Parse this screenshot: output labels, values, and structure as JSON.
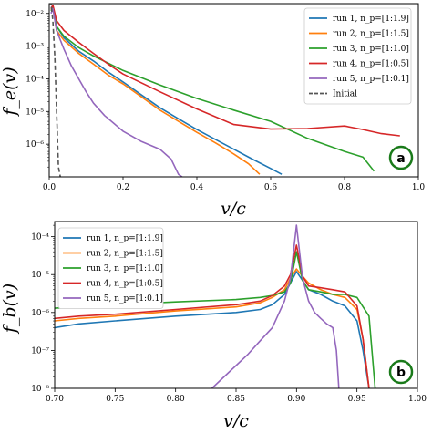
{
  "chart_data": [
    {
      "type": "line",
      "panel_badge": "a",
      "xlabel": "v/c",
      "ylabel": "f_e(v)",
      "xlim": [
        0,
        1
      ],
      "ylim_log10": [
        -7,
        -1.7
      ],
      "y_scale": "log",
      "grid": false,
      "legend_position": "top-right",
      "x_ticks": [
        "0.0",
        "0.2",
        "0.4",
        "0.6",
        "0.8",
        "1.0"
      ],
      "x_tick_values": [
        0,
        0.2,
        0.4,
        0.6,
        0.8,
        1.0
      ],
      "y_ticks": [
        "10⁻⁶",
        "10⁻⁵",
        "10⁻⁴",
        "10⁻³",
        "10⁻²"
      ],
      "y_tick_exponents": [
        -6,
        -5,
        -4,
        -3,
        -2
      ],
      "series": [
        {
          "name": "run 1, n_p=[1:1.9]",
          "color": "#1f77b4",
          "x": [
            0.005,
            0.01,
            0.02,
            0.04,
            0.08,
            0.12,
            0.16,
            0.2,
            0.25,
            0.3,
            0.35,
            0.4,
            0.45,
            0.5,
            0.55,
            0.6,
            0.63
          ],
          "y": [
            0.015,
            0.017,
            0.004,
            0.0018,
            0.0007,
            0.00035,
            0.00016,
            8e-05,
            3.2e-05,
            1.3e-05,
            6e-06,
            2.8e-06,
            1.4e-06,
            7e-07,
            3.5e-07,
            1.8e-07,
            1.2e-07
          ]
        },
        {
          "name": "run 2, n_p=[1:1.5]",
          "color": "#ff7f0e",
          "x": [
            0.005,
            0.01,
            0.02,
            0.04,
            0.08,
            0.12,
            0.16,
            0.2,
            0.25,
            0.3,
            0.35,
            0.4,
            0.45,
            0.5,
            0.54,
            0.57
          ],
          "y": [
            0.013,
            0.016,
            0.003,
            0.0015,
            0.0006,
            0.00028,
            0.00013,
            7e-05,
            2.8e-05,
            1.1e-05,
            5e-06,
            2.3e-06,
            1.1e-06,
            5e-07,
            2.5e-07,
            1.2e-07
          ]
        },
        {
          "name": "run 3, n_p=[1:1.0]",
          "color": "#2ca02c",
          "x": [
            0.005,
            0.01,
            0.02,
            0.04,
            0.08,
            0.12,
            0.16,
            0.2,
            0.3,
            0.4,
            0.5,
            0.6,
            0.7,
            0.8,
            0.85,
            0.88
          ],
          "y": [
            0.012,
            0.015,
            0.004,
            0.002,
            0.0009,
            0.0005,
            0.0003,
            0.00018,
            6.5e-05,
            2.5e-05,
            1.1e-05,
            5e-06,
            1.5e-06,
            6e-07,
            4e-07,
            1.5e-07
          ]
        },
        {
          "name": "run 4, n_p=[1:0.5]",
          "color": "#d62728",
          "x": [
            0.005,
            0.01,
            0.02,
            0.04,
            0.08,
            0.12,
            0.16,
            0.2,
            0.3,
            0.4,
            0.5,
            0.6,
            0.7,
            0.8,
            0.85,
            0.9,
            0.95
          ],
          "y": [
            0.014,
            0.018,
            0.006,
            0.003,
            0.0013,
            0.0006,
            0.00028,
            0.00014,
            4e-05,
            1.2e-05,
            4e-06,
            2.9e-06,
            3e-06,
            3.6e-06,
            2.8e-06,
            2.1e-06,
            1.8e-06
          ]
        },
        {
          "name": "run 5, n_p=[1:0.1]",
          "color": "#9467bd",
          "x": [
            0.005,
            0.01,
            0.02,
            0.04,
            0.06,
            0.08,
            0.1,
            0.12,
            0.15,
            0.2,
            0.25,
            0.3,
            0.33,
            0.35,
            0.36
          ],
          "y": [
            0.01,
            0.014,
            0.003,
            0.0008,
            0.00025,
            0.0001,
            4e-05,
            1.8e-05,
            7.5e-06,
            2.5e-06,
            1.2e-06,
            7e-07,
            3.5e-07,
            1.2e-07,
            1e-07
          ]
        },
        {
          "name": "Initial",
          "color": "#555555",
          "dashed": true,
          "x": [
            0.0,
            0.005,
            0.01,
            0.015,
            0.02,
            0.025,
            0.03
          ],
          "y": [
            0.025,
            0.02,
            0.006,
            0.0005,
            1e-05,
            2e-07,
            1e-07
          ]
        }
      ]
    },
    {
      "type": "line",
      "panel_badge": "b",
      "xlabel": "v/c",
      "ylabel": "f_b(v)",
      "xlim": [
        0.7,
        1.0
      ],
      "ylim_log10": [
        -8,
        -3.6
      ],
      "y_scale": "log",
      "grid": false,
      "legend_position": "top-left",
      "x_ticks": [
        "0.70",
        "0.75",
        "0.80",
        "0.85",
        "0.90",
        "0.95",
        "1.00"
      ],
      "x_tick_values": [
        0.7,
        0.75,
        0.8,
        0.85,
        0.9,
        0.95,
        1.0
      ],
      "y_ticks": [
        "10⁻⁸",
        "10⁻⁷",
        "10⁻⁶",
        "10⁻⁵",
        "10⁻⁴"
      ],
      "y_tick_exponents": [
        -8,
        -7,
        -6,
        -5,
        -4
      ],
      "series": [
        {
          "name": "run 1, n_p=[1:1.9]",
          "color": "#1f77b4",
          "x": [
            0.7,
            0.72,
            0.75,
            0.8,
            0.85,
            0.87,
            0.88,
            0.89,
            0.895,
            0.9,
            0.905,
            0.91,
            0.92,
            0.93,
            0.94,
            0.95,
            0.955,
            0.96
          ],
          "y": [
            4e-07,
            5e-07,
            6e-07,
            8e-07,
            1e-06,
            1.2e-06,
            1.6e-06,
            3e-06,
            6e-06,
            1.2e-05,
            7e-06,
            4e-06,
            3e-06,
            2e-06,
            1.5e-06,
            6e-07,
            1e-07,
            1e-08
          ]
        },
        {
          "name": "run 2, n_p=[1:1.5]",
          "color": "#ff7f0e",
          "x": [
            0.7,
            0.72,
            0.75,
            0.8,
            0.85,
            0.87,
            0.88,
            0.89,
            0.895,
            0.9,
            0.905,
            0.91,
            0.92,
            0.93,
            0.94,
            0.95,
            0.955,
            0.96
          ],
          "y": [
            6e-07,
            7e-07,
            8e-07,
            1.1e-06,
            1.4e-06,
            1.8e-06,
            2.5e-06,
            4e-06,
            8e-06,
            1.4e-05,
            9e-06,
            6e-06,
            4e-06,
            3e-06,
            2.5e-06,
            1.2e-06,
            2e-07,
            1e-08
          ]
        },
        {
          "name": "run 3, n_p=[1:1.0]",
          "color": "#2ca02c",
          "x": [
            0.7,
            0.72,
            0.75,
            0.8,
            0.85,
            0.87,
            0.88,
            0.89,
            0.895,
            0.9,
            0.905,
            0.91,
            0.92,
            0.93,
            0.94,
            0.95,
            0.96,
            0.965
          ],
          "y": [
            1.3e-06,
            1.4e-06,
            1.6e-06,
            1.9e-06,
            2.2e-06,
            2.5e-06,
            2.8e-06,
            3.5e-06,
            6e-06,
            4e-05,
            7e-06,
            4e-06,
            3.5e-06,
            3e-06,
            3e-06,
            2.5e-06,
            8e-07,
            1e-08
          ]
        },
        {
          "name": "run 4, n_p=[1:0.5]",
          "color": "#d62728",
          "x": [
            0.7,
            0.72,
            0.75,
            0.8,
            0.85,
            0.87,
            0.88,
            0.89,
            0.895,
            0.9,
            0.905,
            0.91,
            0.92,
            0.93,
            0.94,
            0.95,
            0.955,
            0.96
          ],
          "y": [
            7e-07,
            8e-07,
            9e-07,
            1.2e-06,
            1.6e-06,
            2e-06,
            2.8e-06,
            5e-06,
            1e-05,
            6e-05,
            9e-06,
            5e-06,
            4.5e-06,
            4e-06,
            3.5e-06,
            1.5e-06,
            2e-07,
            1e-08
          ]
        },
        {
          "name": "run 5, n_p=[1:0.1]",
          "color": "#9467bd",
          "x": [
            0.83,
            0.84,
            0.85,
            0.86,
            0.87,
            0.88,
            0.89,
            0.895,
            0.9,
            0.905,
            0.91,
            0.915,
            0.92,
            0.925,
            0.93,
            0.933,
            0.935
          ],
          "y": [
            1e-08,
            2e-08,
            4e-08,
            8e-08,
            1.8e-07,
            4e-07,
            2e-06,
            8e-06,
            0.0002,
            8e-06,
            2e-06,
            1e-06,
            7e-07,
            5e-07,
            4e-07,
            1e-07,
            1e-08
          ]
        }
      ]
    }
  ]
}
